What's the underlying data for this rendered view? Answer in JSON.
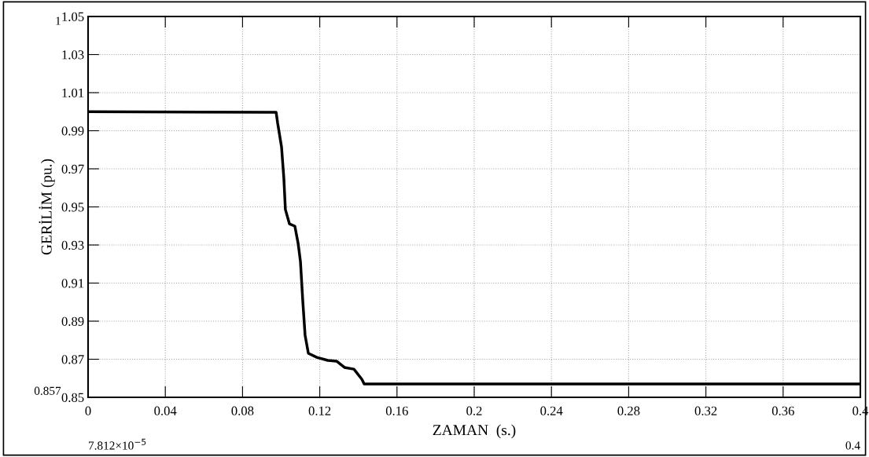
{
  "chart_data": {
    "type": "line",
    "xlabel": "ZAMAN  (s.)",
    "ylabel": "GERİLİM (pu.)",
    "x": [
      0,
      0.0974,
      0.0982,
      0.1002,
      0.1014,
      0.1022,
      0.1043,
      0.1071,
      0.1088,
      0.11,
      0.1112,
      0.1124,
      0.1141,
      0.1185,
      0.1242,
      0.1287,
      0.1328,
      0.1377,
      0.1418,
      0.143,
      0.4
    ],
    "series": [
      {
        "color": "#000000",
        "values": [
          1.0,
          0.9997,
          0.9939,
          0.9815,
          0.9651,
          0.9486,
          0.9411,
          0.9399,
          0.9308,
          0.9213,
          0.9007,
          0.8826,
          0.8731,
          0.871,
          0.8694,
          0.869,
          0.8657,
          0.8648,
          0.8595,
          0.857,
          0.857
        ]
      }
    ],
    "xlim": [
      0,
      0.4
    ],
    "ylim": [
      0.85,
      1.05
    ],
    "xticks": [
      0,
      0.04,
      0.08,
      0.12,
      0.16,
      0.2,
      0.24,
      0.28,
      0.32,
      0.36,
      0.4
    ],
    "yticks": [
      0.85,
      0.87,
      0.89,
      0.91,
      0.93,
      0.95,
      0.97,
      0.99,
      1.01,
      1.03,
      1.05
    ],
    "grid": true,
    "line_style": "solid",
    "marker": "none",
    "annotations": [
      "1",
      "0.857",
      "7.812×10$^{−5}$",
      "0.4"
    ]
  }
}
